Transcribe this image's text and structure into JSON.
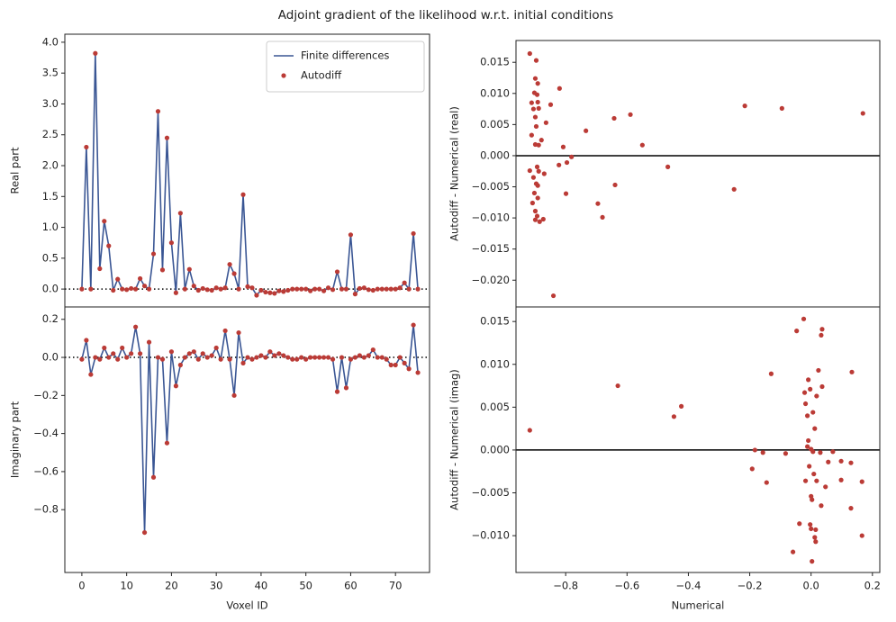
{
  "title": "Adjoint gradient of the likelihood w.r.t. initial conditions",
  "chart_data": [
    {
      "type": "line",
      "ylabel": "Real part",
      "xlim": [
        -3.8,
        77.6
      ],
      "ylim": [
        -0.29,
        4.13
      ],
      "yticks": [
        {
          "value": 0,
          "label": "0.0"
        },
        0.5,
        {
          "value": 1,
          "label": "1.0"
        },
        1.5,
        {
          "value": 2,
          "label": "2.0"
        },
        2.5,
        {
          "value": 3,
          "label": "3.0"
        },
        3.5,
        {
          "value": 4,
          "label": "4.0"
        }
      ],
      "hline": 0,
      "hline_style": "dotted",
      "legend": "upper right",
      "x": [
        0,
        1,
        2,
        3,
        4,
        5,
        6,
        7,
        8,
        9,
        10,
        11,
        12,
        13,
        14,
        15,
        16,
        17,
        18,
        19,
        20,
        21,
        22,
        23,
        24,
        25,
        26,
        27,
        28,
        29,
        30,
        31,
        32,
        33,
        34,
        35,
        36,
        37,
        38,
        39,
        40,
        41,
        42,
        43,
        44,
        45,
        46,
        47,
        48,
        49,
        50,
        51,
        52,
        53,
        54,
        55,
        56,
        57,
        58,
        59,
        60,
        61,
        62,
        63,
        64,
        65,
        66,
        67,
        68,
        69,
        70,
        71,
        72,
        73,
        74,
        75
      ],
      "series": [
        {
          "name": "Finite differences",
          "style": "line",
          "color": "#3a5694",
          "values": [
            0,
            2.3,
            0,
            3.82,
            0.33,
            1.1,
            0.7,
            -0.02,
            0.16,
            0,
            -0.01,
            0.01,
            0,
            0.17,
            0.05,
            0,
            0.57,
            2.88,
            0.31,
            2.45,
            0.75,
            -0.06,
            1.23,
            0,
            0.32,
            0.05,
            -0.02,
            0.01,
            -0.01,
            -0.02,
            0.02,
            0,
            0.02,
            0.4,
            0.25,
            0,
            1.53,
            0.04,
            0.02,
            -0.1,
            -0.02,
            -0.05,
            -0.06,
            -0.07,
            -0.03,
            -0.04,
            -0.02,
            0,
            0,
            0,
            0,
            -0.03,
            0,
            0,
            -0.03,
            0.02,
            -0.01,
            0.28,
            0,
            0,
            0.88,
            -0.08,
            0.01,
            0.02,
            -0.01,
            -0.02,
            0,
            0,
            0,
            0,
            0,
            0.02,
            0.1,
            0,
            0.9,
            0
          ]
        },
        {
          "name": "Autodiff",
          "style": "dots",
          "color": "#bb3b36",
          "values": [
            0,
            2.3,
            0,
            3.82,
            0.33,
            1.1,
            0.7,
            -0.02,
            0.16,
            0,
            -0.01,
            0.01,
            0,
            0.17,
            0.05,
            0,
            0.57,
            2.88,
            0.31,
            2.45,
            0.75,
            -0.06,
            1.23,
            0,
            0.32,
            0.05,
            -0.02,
            0.01,
            -0.01,
            -0.02,
            0.02,
            0,
            0.02,
            0.4,
            0.25,
            0,
            1.53,
            0.04,
            0.02,
            -0.1,
            -0.02,
            -0.05,
            -0.06,
            -0.07,
            -0.03,
            -0.04,
            -0.02,
            0,
            0,
            0,
            0,
            -0.03,
            0,
            0,
            -0.03,
            0.02,
            -0.01,
            0.28,
            0,
            0,
            0.88,
            -0.08,
            0.01,
            0.02,
            -0.01,
            -0.02,
            0,
            0,
            0,
            0,
            0,
            0.02,
            0.1,
            0,
            0.9,
            0
          ]
        }
      ]
    },
    {
      "type": "line",
      "ylabel": "Imaginary part",
      "xlabel": "Voxel ID",
      "xlim": [
        -3.8,
        77.6
      ],
      "ylim": [
        -1.13,
        0.265
      ],
      "xticks": [
        0,
        10,
        20,
        30,
        40,
        50,
        60,
        70
      ],
      "yticks": [
        0.2,
        {
          "value": 0,
          "label": "0.0"
        },
        {
          "value": -0.2,
          "label": "−0.2"
        },
        {
          "value": -0.4,
          "label": "−0.4"
        },
        {
          "value": -0.6,
          "label": "−0.6"
        },
        {
          "value": -0.8,
          "label": "−0.8"
        }
      ],
      "hline": 0,
      "hline_style": "dotted",
      "x": [
        0,
        1,
        2,
        3,
        4,
        5,
        6,
        7,
        8,
        9,
        10,
        11,
        12,
        13,
        14,
        15,
        16,
        17,
        18,
        19,
        20,
        21,
        22,
        23,
        24,
        25,
        26,
        27,
        28,
        29,
        30,
        31,
        32,
        33,
        34,
        35,
        36,
        37,
        38,
        39,
        40,
        41,
        42,
        43,
        44,
        45,
        46,
        47,
        48,
        49,
        50,
        51,
        52,
        53,
        54,
        55,
        56,
        57,
        58,
        59,
        60,
        61,
        62,
        63,
        64,
        65,
        66,
        67,
        68,
        69,
        70,
        71,
        72,
        73,
        74,
        75
      ],
      "series": [
        {
          "style": "line",
          "color": "#3a5694",
          "values": [
            -0.01,
            0.09,
            -0.09,
            0,
            -0.01,
            0.05,
            0,
            0.02,
            -0.01,
            0.05,
            0,
            0.02,
            0.16,
            0.02,
            -0.92,
            0.08,
            -0.63,
            0,
            -0.01,
            -0.45,
            0.03,
            -0.15,
            -0.04,
            0,
            0.02,
            0.03,
            -0.01,
            0.02,
            0,
            0.01,
            0.05,
            -0.01,
            0.14,
            -0.01,
            -0.2,
            0.13,
            -0.03,
            0,
            -0.01,
            0,
            0.01,
            0,
            0.03,
            0.01,
            0.02,
            0.01,
            0,
            -0.01,
            -0.01,
            0,
            -0.01,
            0,
            0,
            0,
            0,
            0,
            -0.01,
            -0.18,
            0,
            -0.16,
            -0.01,
            0,
            0.01,
            0,
            0.01,
            0.04,
            0,
            0,
            -0.01,
            -0.04,
            -0.04,
            0,
            -0.03,
            -0.06,
            0.17,
            -0.08
          ]
        },
        {
          "style": "dots",
          "color": "#bb3b36",
          "values": [
            -0.01,
            0.09,
            -0.09,
            0,
            -0.01,
            0.05,
            0,
            0.02,
            -0.01,
            0.05,
            0,
            0.02,
            0.16,
            0.02,
            -0.92,
            0.08,
            -0.63,
            0,
            -0.01,
            -0.45,
            0.03,
            -0.15,
            -0.04,
            0,
            0.02,
            0.03,
            -0.01,
            0.02,
            0,
            0.01,
            0.05,
            -0.01,
            0.14,
            -0.01,
            -0.2,
            0.13,
            -0.03,
            0,
            -0.01,
            0,
            0.01,
            0,
            0.03,
            0.01,
            0.02,
            0.01,
            0,
            -0.01,
            -0.01,
            0,
            -0.01,
            0,
            0,
            0,
            0,
            0,
            -0.01,
            -0.18,
            0,
            -0.16,
            -0.01,
            0,
            0.01,
            0,
            0.01,
            0.04,
            0,
            0,
            -0.01,
            -0.04,
            -0.04,
            0,
            -0.03,
            -0.06,
            0.17,
            -0.08
          ]
        }
      ]
    },
    {
      "type": "scatter",
      "ylabel": "Autodiff - Numerical (real)",
      "xlim": [
        -0.962,
        0.224
      ],
      "ylim": [
        -0.0243,
        0.0185
      ],
      "yticks": [
        0.015,
        {
          "value": 0.01,
          "label": "0.010"
        },
        0.005,
        {
          "value": 0,
          "label": "0.000"
        },
        {
          "value": -0.005,
          "label": "−0.005"
        },
        {
          "value": -0.01,
          "label": "−0.010"
        },
        {
          "value": -0.015,
          "label": "−0.015"
        },
        {
          "value": -0.02,
          "label": "−0.020"
        }
      ],
      "hline": 0,
      "hline_style": "solid",
      "color": "#bb3b36",
      "x": [
        -0.917,
        -0.896,
        -0.899,
        -0.891,
        -0.902,
        -0.82,
        -0.893,
        -0.911,
        -0.891,
        -0.849,
        -0.905,
        -0.888,
        -0.899,
        -0.864,
        -0.896,
        -0.911,
        -0.879,
        -0.899,
        -0.888,
        -0.808,
        -0.734,
        -0.642,
        -0.589,
        -0.55,
        -0.216,
        -0.095,
        0.169,
        -0.917,
        -0.893,
        -0.888,
        -0.87,
        -0.905,
        -0.896,
        -0.891,
        -0.902,
        -0.891,
        -0.908,
        -0.899,
        -0.893,
        -0.899,
        -0.873,
        -0.885,
        -0.822,
        -0.799,
        -0.781,
        -0.796,
        -0.467,
        -0.639,
        -0.695,
        -0.68,
        -0.251,
        -0.84
      ],
      "y": [
        0.0164,
        0.0153,
        0.0124,
        0.0116,
        0.0101,
        0.0108,
        0.0098,
        0.0085,
        0.0086,
        0.0082,
        0.0075,
        0.0076,
        0.0062,
        0.0053,
        0.0047,
        0.0033,
        0.0025,
        0.0018,
        0.0017,
        0.0014,
        0.004,
        0.006,
        0.0066,
        0.0017,
        0.008,
        0.0076,
        0.0068,
        -0.0024,
        -0.0018,
        -0.0025,
        -0.0029,
        -0.0035,
        -0.0045,
        -0.0048,
        -0.006,
        -0.0068,
        -0.0076,
        -0.0089,
        -0.0097,
        -0.0103,
        -0.0102,
        -0.0106,
        -0.0015,
        -0.0061,
        -0.0002,
        -0.0011,
        -0.0018,
        -0.0047,
        -0.0077,
        -0.0099,
        -0.0054,
        -0.0225
      ]
    },
    {
      "type": "scatter",
      "ylabel": "Autodiff - Numerical (imag)",
      "xlabel": "Numerical",
      "xlim": [
        -0.962,
        0.224
      ],
      "ylim": [
        -0.0143,
        0.0167
      ],
      "xticks": [
        {
          "value": -0.8,
          "label": "−0.8"
        },
        {
          "value": -0.6,
          "label": "−0.6"
        },
        {
          "value": -0.4,
          "label": "−0.4"
        },
        {
          "value": -0.2,
          "label": "−0.2"
        },
        {
          "value": 0,
          "label": "0.0"
        },
        0.2
      ],
      "yticks": [
        0.015,
        {
          "value": 0.01,
          "label": "0.010"
        },
        0.005,
        {
          "value": 0,
          "label": "0.000"
        },
        {
          "value": -0.005,
          "label": "−0.005"
        },
        {
          "value": -0.01,
          "label": "−0.010"
        }
      ],
      "hline": 0,
      "hline_style": "solid",
      "color": "#bb3b36",
      "x": [
        -0.917,
        -0.63,
        -0.447,
        -0.423,
        -0.024,
        -0.047,
        0.036,
        0.033,
        0.133,
        -0.13,
        0.024,
        -0.009,
        -0.021,
        -0.003,
        0.036,
        -0.018,
        0.018,
        0.006,
        -0.012,
        0.012,
        -0.009,
        -0.012,
        0,
        0.006,
        0.03,
        -0.183,
        -0.157,
        -0.083,
        -0.192,
        -0.145,
        0.071,
        0.056,
        0.098,
        -0.006,
        0.009,
        0.018,
        -0.018,
        0.13,
        0.098,
        0.166,
        0,
        0.003,
        0.047,
        0.13,
        -0.038,
        -0.003,
        0,
        0.015,
        0.012,
        0.015,
        0.166,
        -0.059,
        0.003,
        0.033
      ],
      "y": [
        0.0023,
        0.0075,
        0.0039,
        0.0051,
        0.0153,
        0.0139,
        0.0141,
        0.0134,
        0.0091,
        0.0089,
        0.0093,
        0.0082,
        0.0067,
        0.0071,
        0.0074,
        0.0054,
        0.0063,
        0.0044,
        0.004,
        0.0025,
        0.0011,
        0.0004,
        0.0001,
        -0.0002,
        -0.0003,
        0,
        -0.0003,
        -0.0004,
        -0.0022,
        -0.0038,
        -0.0002,
        -0.0014,
        -0.0013,
        -0.0019,
        -0.0028,
        -0.0036,
        -0.0036,
        -0.0015,
        -0.0035,
        -0.0037,
        -0.0054,
        -0.0058,
        -0.0043,
        -0.0068,
        -0.0086,
        -0.0087,
        -0.0092,
        -0.0093,
        -0.0102,
        -0.0107,
        -0.01,
        -0.0119,
        -0.013,
        -0.0065
      ]
    }
  ]
}
